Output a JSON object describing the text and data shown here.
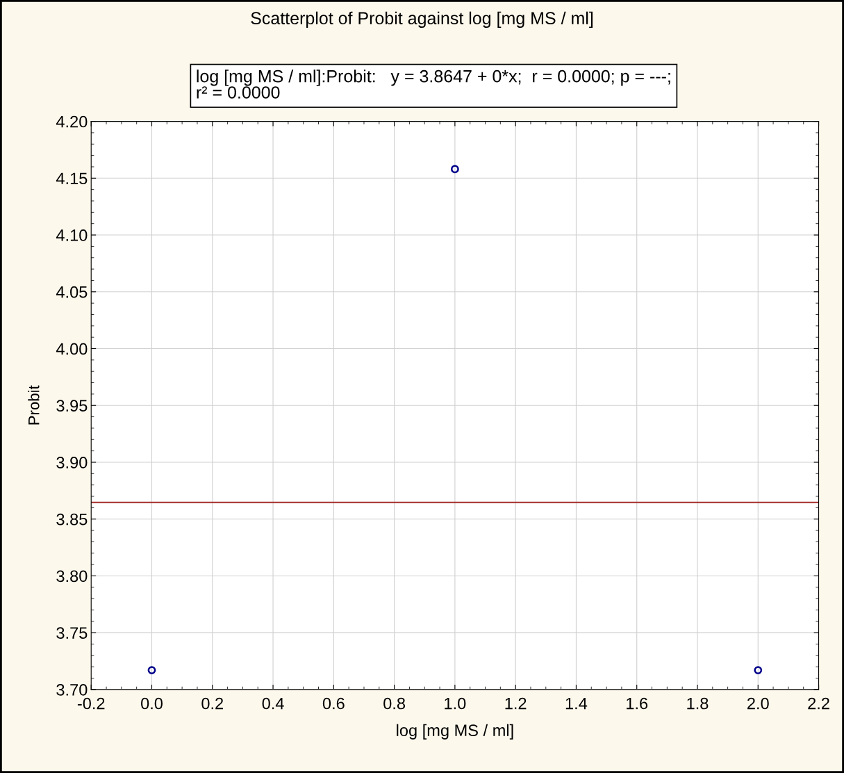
{
  "chart_data": {
    "type": "scatter",
    "title": "Scatterplot of Probit against log [mg MS / ml]",
    "xlabel": "log [mg MS / ml]",
    "ylabel": "Probit",
    "annotations": [
      "log [mg MS / ml]:Probit:   y = 3.8647 + 0*x;  r = 0.0000; p = ---;\nr² = 0.0000"
    ],
    "series": [
      {
        "color": "#00008b",
        "x": [
          0,
          1,
          2
        ],
        "values": [
          3.717,
          4.158,
          3.717
        ],
        "marker": "circle"
      },
      {
        "type": "line",
        "color": "#a52a2a",
        "x": [
          -0.2,
          2.2
        ],
        "values": [
          3.8647,
          3.8647
        ],
        "line_style": "solid"
      }
    ],
    "xlim": [
      -0.2,
      2.2
    ],
    "ylim": [
      3.7,
      4.2
    ],
    "xticks": [
      {
        "value": -0.2,
        "label": "-0.2"
      },
      {
        "value": 0,
        "label": "0.0"
      },
      0.2,
      0.4,
      0.6,
      0.8,
      {
        "value": 1,
        "label": "1.0"
      },
      1.2,
      1.4,
      1.6,
      1.8,
      {
        "value": 2,
        "label": "2.0"
      },
      2.2
    ],
    "yticks": [
      {
        "value": 3.7,
        "label": "3.70"
      },
      3.75,
      {
        "value": 3.8,
        "label": "3.80"
      },
      3.85,
      {
        "value": 3.9,
        "label": "3.90"
      },
      3.95,
      {
        "value": 4.0,
        "label": "4.00"
      },
      4.05,
      {
        "value": 4.1,
        "label": "4.10"
      },
      4.15,
      {
        "value": 4.2,
        "label": "4.20"
      }
    ],
    "grid": true,
    "legend": false
  }
}
